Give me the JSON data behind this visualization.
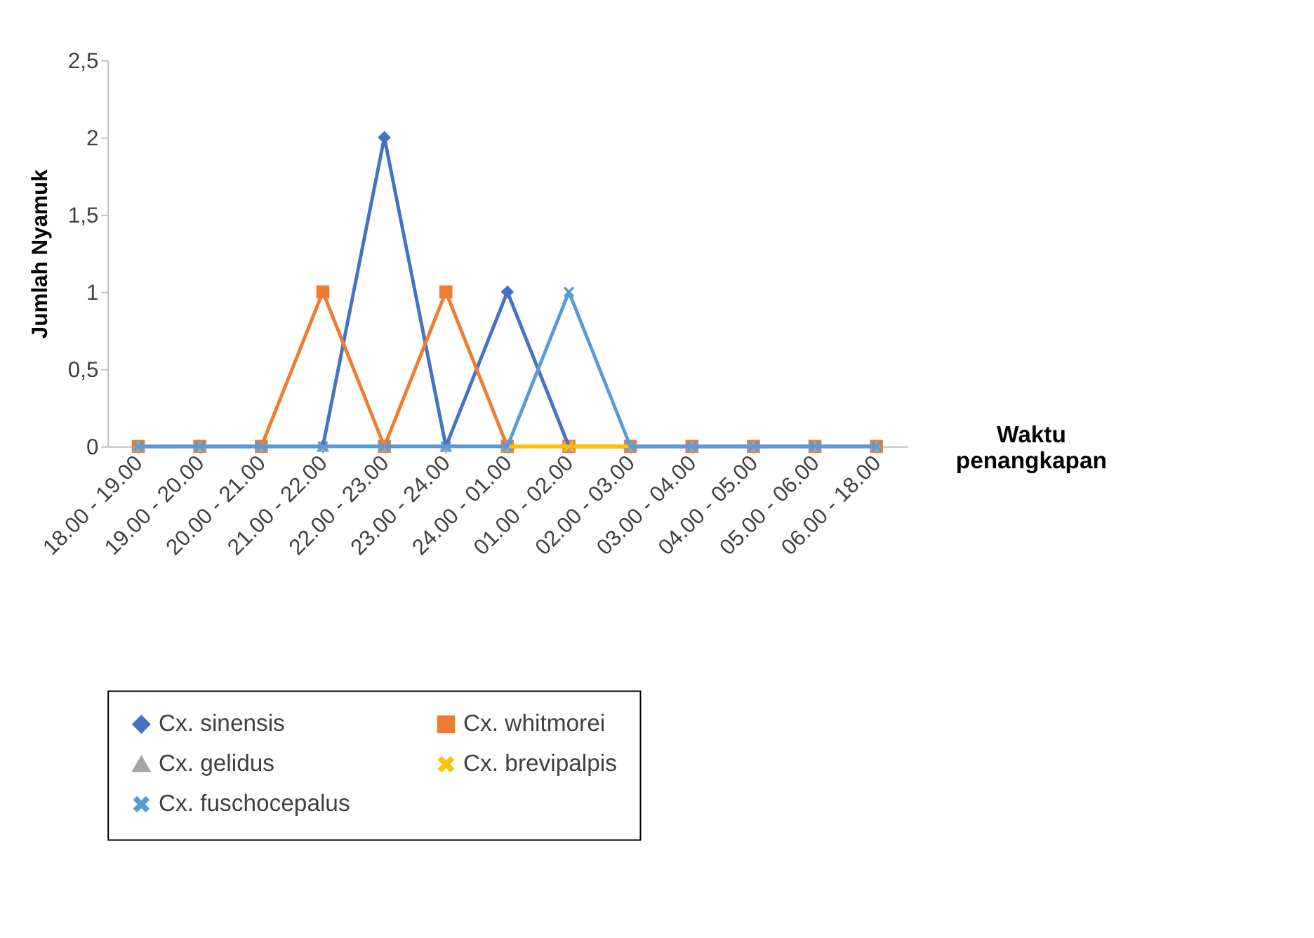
{
  "chart_data": {
    "type": "line",
    "xlabel": "Waktu penangkapan",
    "ylabel": "Jumlah Nyamuk",
    "categories": [
      "18.00 - 19.00",
      "19.00 - 20.00",
      "20.00 - 21.00",
      "21.00 - 22.00",
      "22.00 - 23.00",
      "23.00 - 24.00",
      "24.00 - 01.00",
      "01.00 - 02.00",
      "02.00 - 03.00",
      "03.00 - 04.00",
      "04.00 - 05.00",
      "05.00 - 06.00",
      "06.00 - 18.00"
    ],
    "series": [
      {
        "name": "Cx. sinensis",
        "color": "#4472c4",
        "marker": "diamond",
        "values": [
          0,
          0,
          0,
          0,
          2,
          0,
          1,
          0,
          0,
          0,
          0,
          0,
          0
        ]
      },
      {
        "name": "Cx. whitmorei",
        "color": "#ed7d31",
        "marker": "square",
        "values": [
          0,
          0,
          0,
          1,
          0,
          1,
          0,
          0,
          0,
          0,
          0,
          0,
          0
        ]
      },
      {
        "name": "Cx. gelidus",
        "color": "#a5a5a5",
        "marker": "triangle",
        "values": [
          0,
          0,
          0,
          0,
          0,
          0,
          0,
          0,
          0,
          0,
          0,
          0,
          0
        ]
      },
      {
        "name": "Cx. brevipalpis",
        "color": "#ffc000",
        "marker": "cross",
        "values": [
          null,
          null,
          null,
          null,
          null,
          null,
          0,
          0,
          0,
          null,
          null,
          null,
          null
        ]
      },
      {
        "name": "Cx. fuschocepalus",
        "color": "#5b9bd5",
        "marker": "cross",
        "values": [
          0,
          0,
          0,
          0,
          0,
          0,
          0,
          1,
          0,
          0,
          0,
          0,
          0
        ]
      }
    ],
    "ylim": [
      0,
      2.5
    ],
    "yticks": [
      0,
      {
        "value": 0.5,
        "label": "0,5"
      },
      1,
      {
        "value": 1.5,
        "label": "1,5"
      },
      2,
      {
        "value": 2.5,
        "label": "2,5"
      }
    ],
    "grid": false,
    "legend": "bottom",
    "line_style": "solid"
  }
}
